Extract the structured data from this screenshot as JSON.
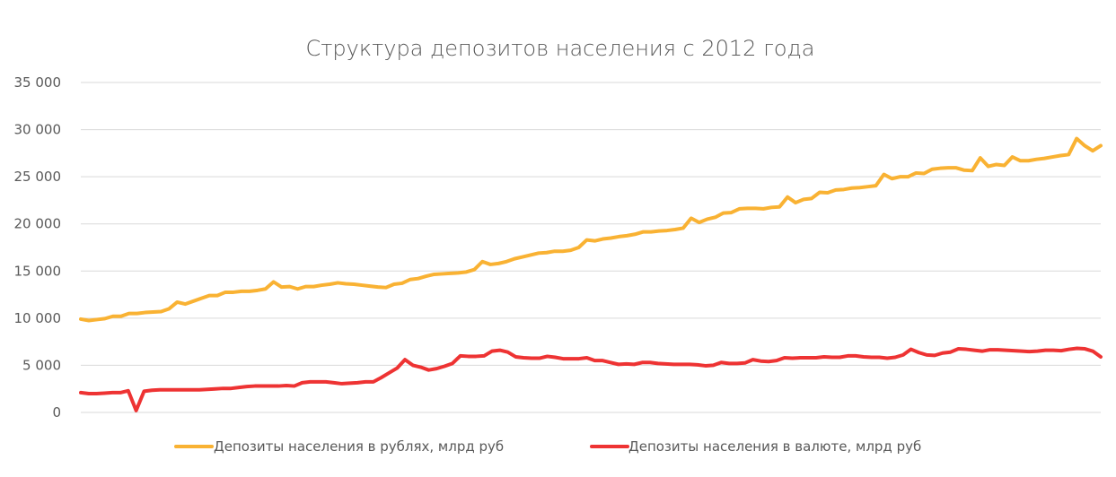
{
  "chart_data": {
    "type": "line",
    "title": "Структура депозитов населения с 2012 года",
    "xlabel": "",
    "ylabel": "",
    "ylim": [
      0,
      35000
    ],
    "y_ticks": [
      0,
      5000,
      10000,
      15000,
      20000,
      25000,
      30000,
      35000
    ],
    "y_tick_labels": [
      "0",
      "5 000",
      "10 000",
      "15 000",
      "20 000",
      "25 000",
      "30 000",
      "35 000"
    ],
    "grid": true,
    "legend_position": "bottom",
    "series": [
      {
        "name": "Депозиты населения в рублях, млрд руб",
        "color": "#F9B233",
        "values": [
          9900,
          9750,
          9850,
          9950,
          10200,
          10200,
          10500,
          10500,
          10600,
          10650,
          10700,
          11000,
          11700,
          11500,
          11800,
          12100,
          12400,
          12400,
          12750,
          12750,
          12850,
          12850,
          12950,
          13100,
          13850,
          13300,
          13350,
          13100,
          13350,
          13350,
          13500,
          13600,
          13750,
          13650,
          13600,
          13500,
          13400,
          13300,
          13250,
          13600,
          13700,
          14100,
          14200,
          14450,
          14650,
          14700,
          14750,
          14800,
          14900,
          15150,
          16000,
          15700,
          15800,
          16000,
          16300,
          16500,
          16700,
          16900,
          16950,
          17100,
          17100,
          17200,
          17500,
          18300,
          18200,
          18400,
          18500,
          18650,
          18750,
          18900,
          19150,
          19150,
          19250,
          19300,
          19400,
          19550,
          20600,
          20150,
          20500,
          20700,
          21150,
          21200,
          21600,
          21650,
          21650,
          21600,
          21750,
          21800,
          22850,
          22250,
          22600,
          22700,
          23350,
          23300,
          23600,
          23650,
          23800,
          23850,
          23950,
          24050,
          25250,
          24800,
          25000,
          25000,
          25400,
          25350,
          25800,
          25900,
          25950,
          25950,
          25700,
          25650,
          27000,
          26100,
          26300,
          26200,
          27100,
          26700,
          26700,
          26850,
          26950,
          27100,
          27250,
          27350,
          29050,
          28300,
          27750,
          28300
        ]
      },
      {
        "name": "Депозиты населения в валюте, млрд руб",
        "color": "#EE3333",
        "values": [
          2100,
          2000,
          2000,
          2050,
          2100,
          2100,
          2300,
          200,
          2250,
          2350,
          2400,
          2400,
          2400,
          2400,
          2400,
          2400,
          2450,
          2500,
          2550,
          2550,
          2650,
          2750,
          2800,
          2800,
          2800,
          2800,
          2850,
          2800,
          3150,
          3250,
          3250,
          3250,
          3150,
          3050,
          3100,
          3150,
          3250,
          3250,
          3700,
          4200,
          4700,
          5600,
          5000,
          4800,
          4500,
          4650,
          4900,
          5200,
          6000,
          5950,
          5950,
          6000,
          6500,
          6600,
          6400,
          5900,
          5800,
          5750,
          5750,
          5950,
          5850,
          5700,
          5700,
          5700,
          5800,
          5500,
          5500,
          5300,
          5100,
          5150,
          5100,
          5300,
          5300,
          5200,
          5150,
          5100,
          5100,
          5100,
          5050,
          4950,
          5000,
          5300,
          5200,
          5200,
          5250,
          5600,
          5450,
          5400,
          5500,
          5800,
          5750,
          5800,
          5800,
          5800,
          5900,
          5850,
          5850,
          6000,
          6000,
          5900,
          5850,
          5850,
          5750,
          5850,
          6100,
          6700,
          6350,
          6100,
          6050,
          6300,
          6400,
          6750,
          6700,
          6600,
          6500,
          6650,
          6650,
          6600,
          6550,
          6500,
          6450,
          6500,
          6600,
          6600,
          6550,
          6700,
          6800,
          6750,
          6500,
          5900
        ]
      }
    ]
  }
}
